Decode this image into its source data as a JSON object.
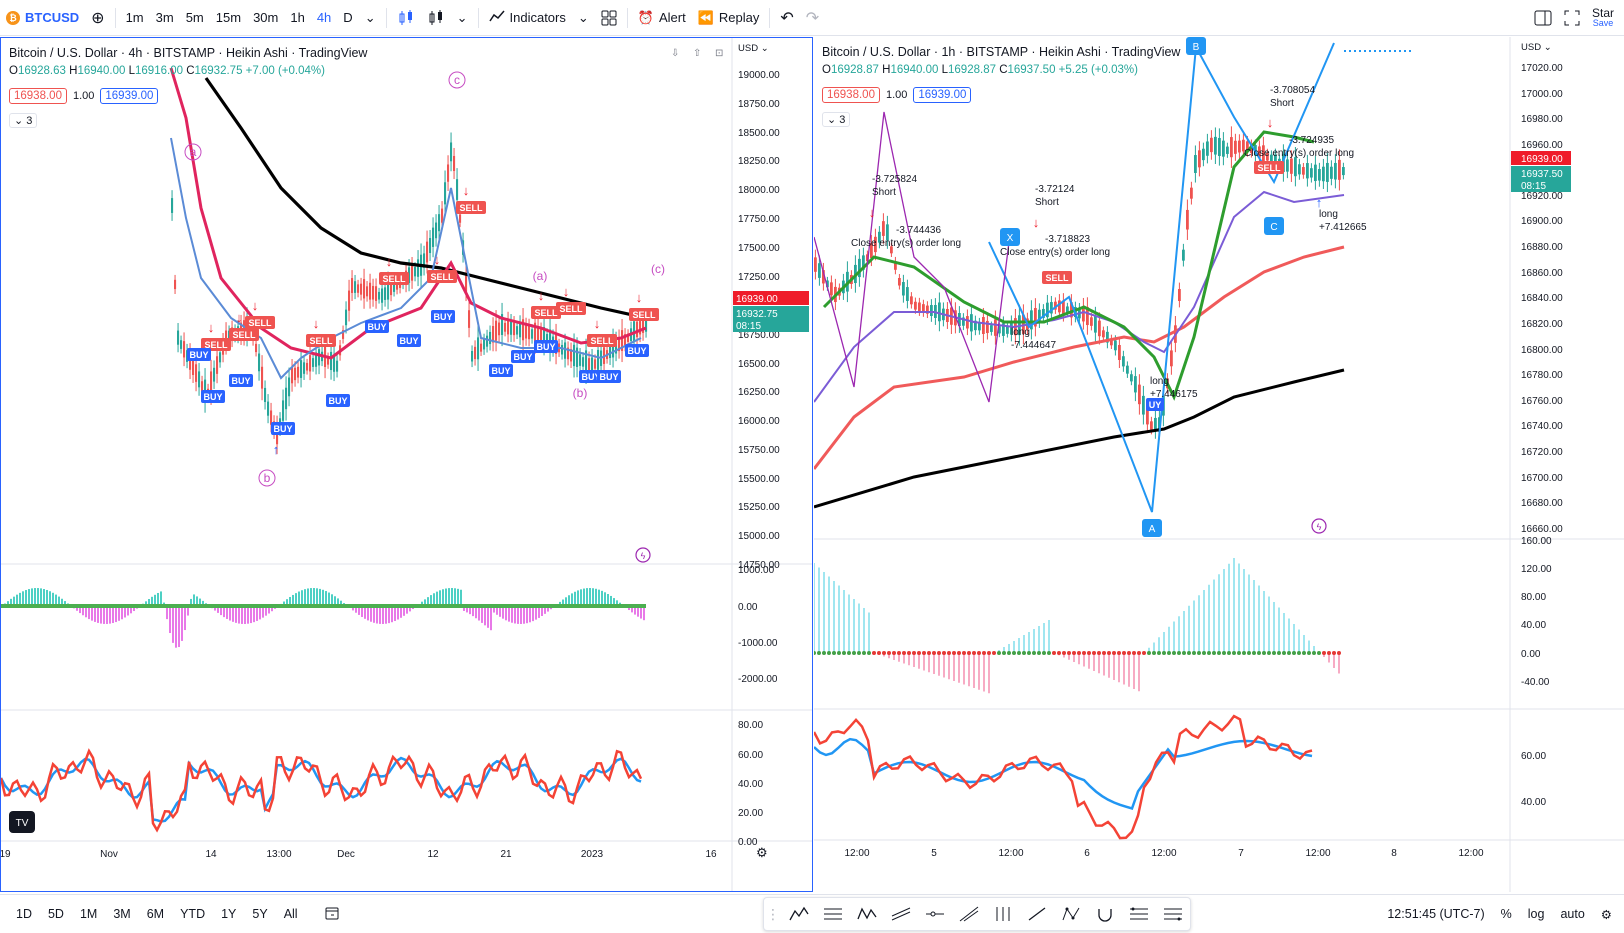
{
  "topbar": {
    "symbol": "BTCUSD",
    "intervals": [
      "1m",
      "3m",
      "5m",
      "15m",
      "30m",
      "1h",
      "4h",
      "D"
    ],
    "active_interval": "4h",
    "indicators_label": "Indicators",
    "alert_label": "Alert",
    "replay_label": "Replay",
    "star_label": "Star",
    "save_label": "Save"
  },
  "left_chart": {
    "title": "Bitcoin / U.S. Dollar · 4h · BITSTAMP · Heikin Ashi · TradingView",
    "ohlc": {
      "o": "16928.63",
      "h": "16940.00",
      "l": "16916.00",
      "c": "16932.75",
      "chg": "+7.00 (+0.04%)"
    },
    "sell_price": "16938.00",
    "qty": "1.00",
    "buy_price": "16939.00",
    "indicator_count": "3",
    "currency": "USD",
    "price_ticks": [
      "19000.00",
      "18750.00",
      "18500.00",
      "18250.00",
      "18000.00",
      "17750.00",
      "17500.00",
      "17250.00",
      "16750.00",
      "16500.00",
      "16250.00",
      "16000.00",
      "15750.00",
      "15500.00",
      "15250.00",
      "15000.00",
      "14750.00"
    ],
    "last_price_red": "16939.00",
    "last_price_green": "16932.75",
    "countdown": "08:15",
    "macd_ticks": [
      "1000.00",
      "0.00",
      "-1000.00",
      "-2000.00"
    ],
    "rsi_ticks": [
      "80.00",
      "60.00",
      "40.00",
      "20.00",
      "0.00"
    ],
    "time_ticks": [
      "19",
      "Nov",
      "14",
      "13:00",
      "Dec",
      "12",
      "21",
      "2023",
      "16"
    ],
    "wave_labels": [
      "a",
      "b",
      "c",
      "(a)",
      "(b)",
      "(c)"
    ],
    "signal_buy": "BUY",
    "signal_sell": "SELL"
  },
  "right_chart": {
    "title": "Bitcoin / U.S. Dollar · 1h · BITSTAMP · Heikin Ashi · TradingView",
    "ohlc": {
      "o": "16928.87",
      "h": "16940.00",
      "l": "16928.87",
      "c": "16937.50",
      "chg": "+5.25 (+0.03%)"
    },
    "sell_price": "16938.00",
    "qty": "1.00",
    "buy_price": "16939.00",
    "indicator_count": "3",
    "currency": "USD",
    "price_ticks": [
      "17020.00",
      "17000.00",
      "16980.00",
      "16960.00",
      "16920.00",
      "16900.00",
      "16880.00",
      "16860.00",
      "16840.00",
      "16820.00",
      "16800.00",
      "16780.00",
      "16760.00",
      "16740.00",
      "16720.00",
      "16700.00",
      "16680.00",
      "16660.00"
    ],
    "last_price_red": "16939.00",
    "last_price_green": "16937.50",
    "countdown": "08:15",
    "macd_ticks": [
      "160.00",
      "120.00",
      "80.00",
      "40.00",
      "0.00",
      "-40.00"
    ],
    "rsi_ticks": [
      "60.00",
      "40.00"
    ],
    "time_ticks": [
      "12:00",
      "5",
      "12:00",
      "6",
      "12:00",
      "7",
      "12:00",
      "8",
      "12:00"
    ],
    "annotations": [
      {
        "lines": [
          "-3.725824",
          "Short"
        ]
      },
      {
        "lines": [
          "-3.744436",
          "Close entry(s) order long"
        ]
      },
      {
        "lines": [
          "-3.72124",
          "Short"
        ]
      },
      {
        "lines": [
          "-3.718823",
          "Close entry(s) order long"
        ]
      },
      {
        "lines": [
          "-3.708054",
          "Short"
        ]
      },
      {
        "lines": [
          "-3.724935",
          "Close entry(s) order long"
        ]
      },
      {
        "lines": [
          "long",
          "+7.412665"
        ]
      },
      {
        "lines": [
          "long",
          "-7.444647"
        ]
      },
      {
        "lines": [
          "long",
          "+7.446175"
        ]
      }
    ],
    "xabc_labels": [
      "X",
      "A",
      "B",
      "C"
    ],
    "signal_sell": "SELL",
    "signal_buy": "UY"
  },
  "bottombar": {
    "ranges": [
      "1D",
      "5D",
      "1M",
      "3M",
      "6M",
      "YTD",
      "1Y",
      "5Y",
      "All"
    ],
    "clock": "12:51:45 (UTC-7)",
    "pct_label": "%",
    "log_label": "log",
    "auto_label": "auto"
  },
  "colors": {
    "up": "#26a69a",
    "down": "#ef5350",
    "accent": "#2962ff",
    "ema_black": "#000000",
    "ema_red": "#f05a5a",
    "ema_purple": "#7b5cd6",
    "ema_green": "#2e9d2e"
  }
}
